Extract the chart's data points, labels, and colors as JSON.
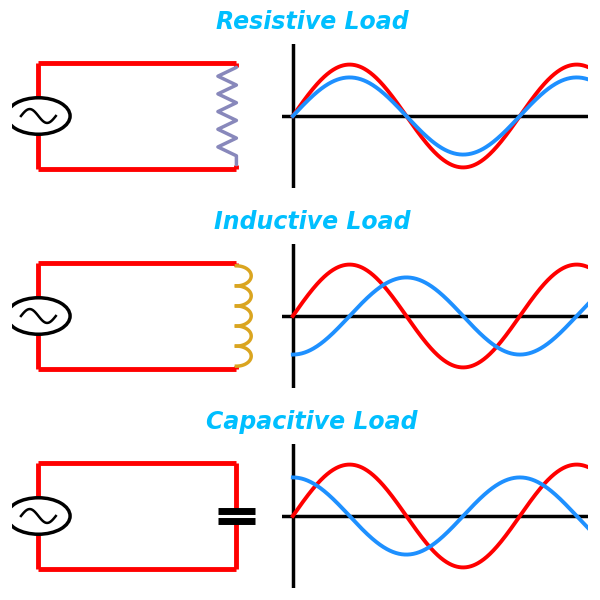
{
  "title_resistive": "Resistive Load",
  "title_inductive": "Inductive Load",
  "title_capacitive": "Capacitive Load",
  "title_color": "#00BFFF",
  "title_fontsize": 17,
  "circuit_color": "#FF0000",
  "circuit_lw": 3.5,
  "voltage_color": "#FF0000",
  "current_color": "#1E90FF",
  "wave_lw": 2.8,
  "resistive_phase": 0,
  "inductive_phase": 1.5707963,
  "capacitive_phase": -1.5707963,
  "resistor_color": "#8888BB",
  "inductor_color": "#DAA520",
  "capacitor_color": "#000000",
  "background_color": "#FFFFFF"
}
